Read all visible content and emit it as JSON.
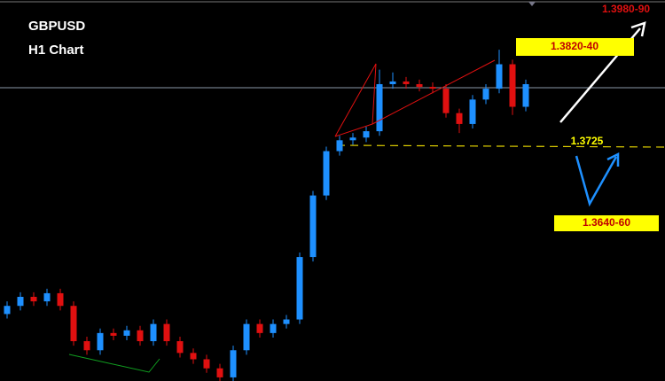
{
  "chart_data": {
    "type": "candlestick",
    "title": "GBPUSD",
    "subtitle": "H1 Chart",
    "annotations": [
      "1.3980-90",
      "1.3820-40",
      "1.3725",
      "1.3640-60"
    ],
    "ylim": [
      1.3466,
      1.3887
    ],
    "up_color": "#1e90ff",
    "down_color": "#e01010",
    "open": [
      1.354,
      1.3549,
      1.3559,
      1.3554,
      1.3563,
      1.3549,
      1.351,
      1.35,
      1.3519,
      1.3516,
      1.3522,
      1.351,
      1.3529,
      1.351,
      1.3497,
      1.349,
      1.348,
      1.347,
      1.35,
      1.3529,
      1.3519,
      1.3529,
      1.3534,
      1.3603,
      1.3671,
      1.372,
      1.3732,
      1.3735,
      1.3742,
      1.3794,
      1.3797,
      1.3794,
      1.3791,
      1.3789,
      1.3762,
      1.375,
      1.3777,
      1.3789,
      1.3816,
      1.3769
    ],
    "close": [
      1.3549,
      1.3559,
      1.3554,
      1.3563,
      1.3549,
      1.351,
      1.35,
      1.3519,
      1.3516,
      1.3522,
      1.351,
      1.3529,
      1.351,
      1.3497,
      1.349,
      1.348,
      1.347,
      1.35,
      1.3529,
      1.3519,
      1.3529,
      1.3534,
      1.3603,
      1.3671,
      1.372,
      1.3732,
      1.3735,
      1.3742,
      1.3794,
      1.3797,
      1.3794,
      1.3791,
      1.3789,
      1.3762,
      1.375,
      1.3777,
      1.3789,
      1.3816,
      1.3769,
      1.3794
    ],
    "high": [
      1.3554,
      1.3564,
      1.3564,
      1.3568,
      1.3568,
      1.3554,
      1.3515,
      1.3524,
      1.3524,
      1.3527,
      1.3527,
      1.3534,
      1.3534,
      1.3515,
      1.3502,
      1.3495,
      1.3485,
      1.3505,
      1.3534,
      1.3534,
      1.3534,
      1.3539,
      1.3608,
      1.3676,
      1.3725,
      1.3737,
      1.374,
      1.3747,
      1.381,
      1.3807,
      1.3802,
      1.3799,
      1.3796,
      1.3794,
      1.3767,
      1.3782,
      1.3794,
      1.3832,
      1.3821,
      1.3799
    ],
    "low": [
      1.3535,
      1.3544,
      1.3549,
      1.3549,
      1.3544,
      1.3505,
      1.3495,
      1.3495,
      1.3511,
      1.3511,
      1.3505,
      1.3505,
      1.3505,
      1.3492,
      1.3485,
      1.3475,
      1.3465,
      1.3465,
      1.3495,
      1.3514,
      1.3514,
      1.3524,
      1.3529,
      1.3598,
      1.3666,
      1.3715,
      1.3727,
      1.373,
      1.3737,
      1.3789,
      1.3789,
      1.3786,
      1.3784,
      1.3757,
      1.374,
      1.3745,
      1.3772,
      1.3784,
      1.376,
      1.3764
    ]
  }
}
